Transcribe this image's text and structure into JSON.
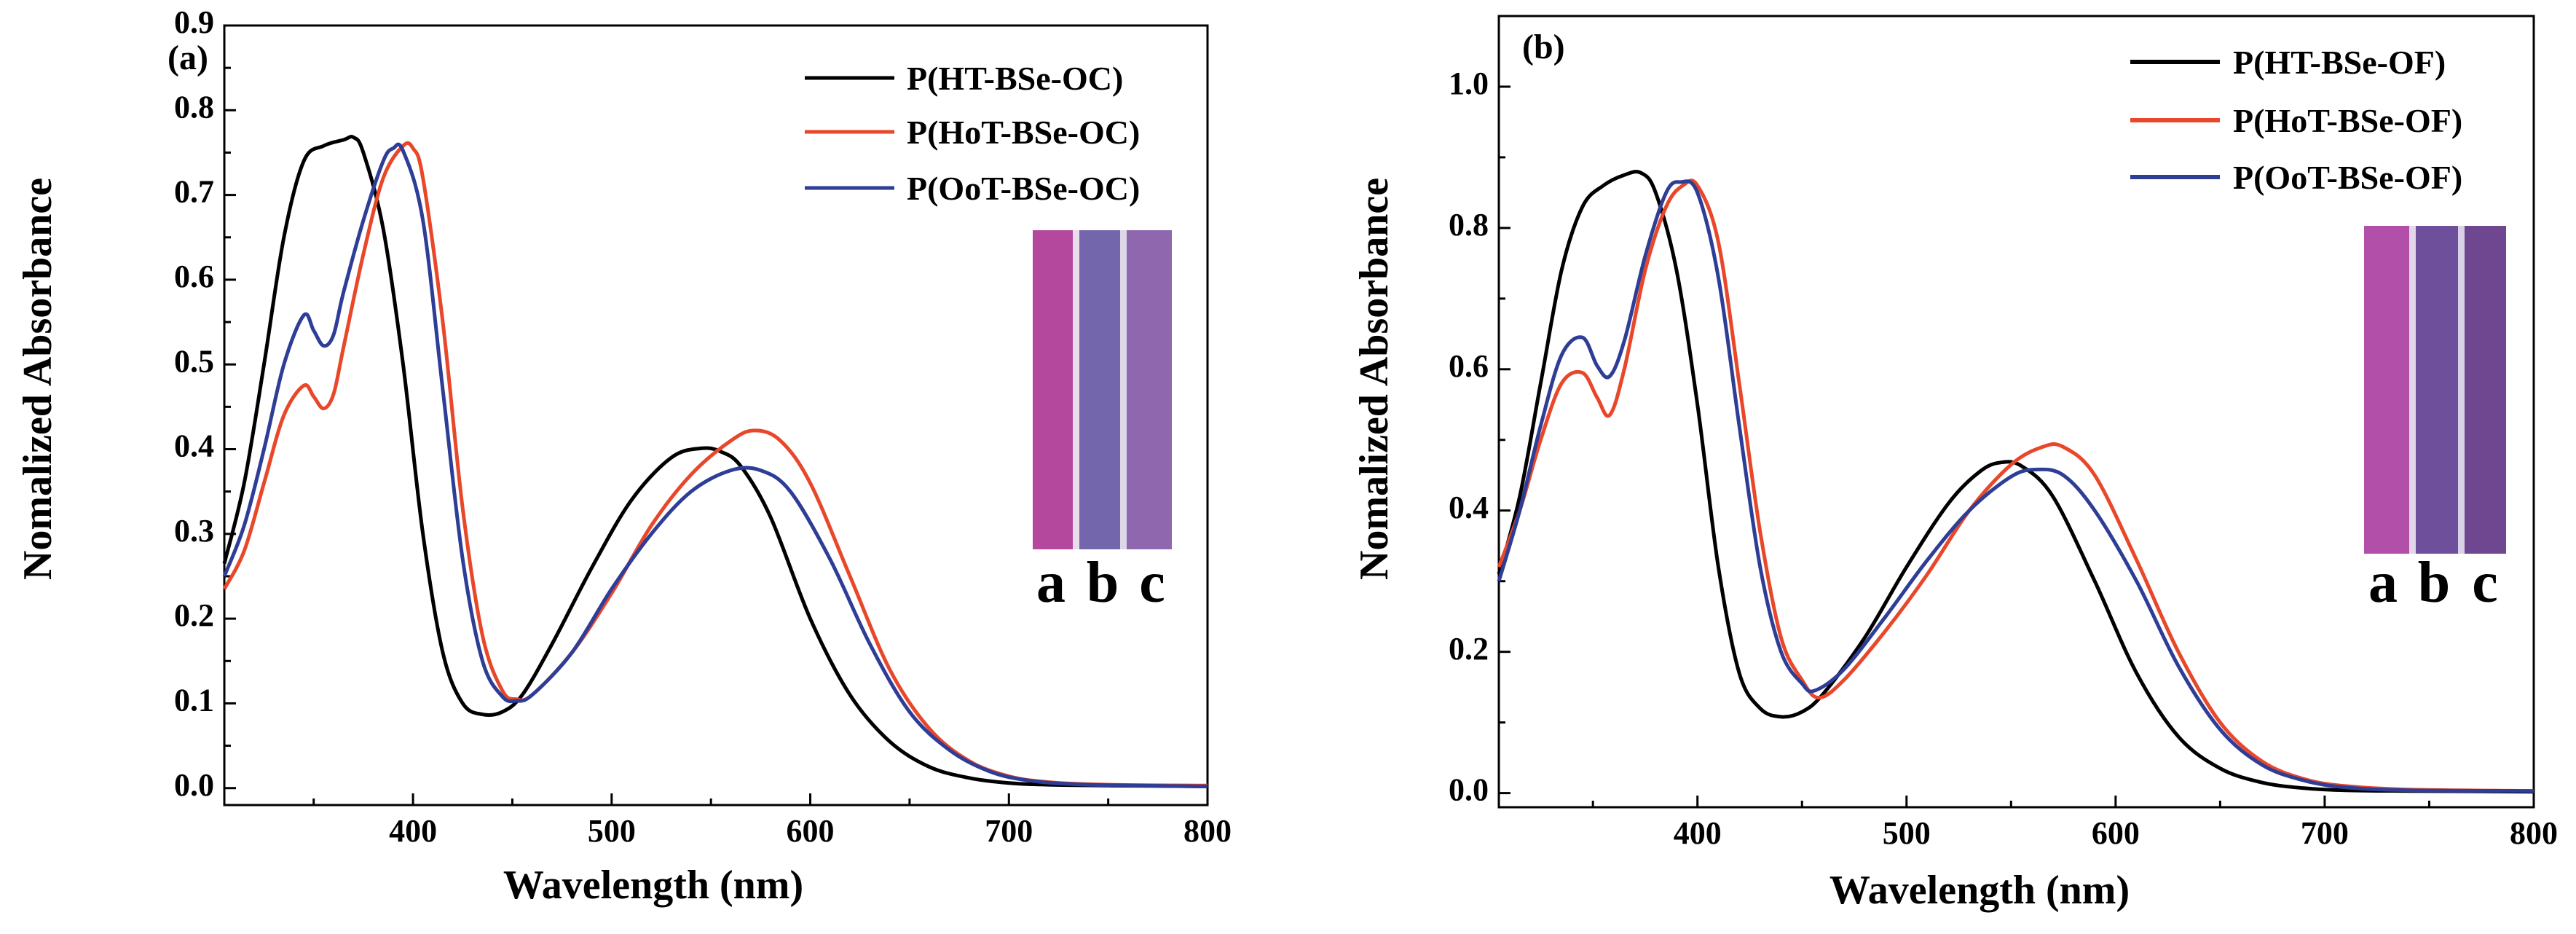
{
  "figure": {
    "panels": [
      {
        "id": "a",
        "inset": {
          "strip_colors": [
            "#b3489d",
            "#7466ad",
            "#8e67ae"
          ],
          "labels": [
            "a",
            "b",
            "c"
          ]
        }
      },
      {
        "id": "b",
        "inset": {
          "strip_colors": [
            "#b24fa8",
            "#6e4f9b",
            "#6f4690"
          ],
          "labels": [
            "a",
            "b",
            "c"
          ]
        }
      }
    ]
  },
  "chart_data": [
    {
      "type": "line",
      "panel_label": "(a)",
      "title": "",
      "xlabel": "Wavelength (nm)",
      "ylabel": "Nomalized Absorbance",
      "xlim": [
        305,
        800
      ],
      "ylim": [
        -0.02,
        0.9
      ],
      "xticks": [
        400,
        500,
        600,
        700,
        800
      ],
      "yticks": [
        0.0,
        0.1,
        0.2,
        0.3,
        0.4,
        0.5,
        0.6,
        0.7,
        0.8,
        0.9
      ],
      "ytick_labels": [
        "0.0",
        "0.1",
        "0.2",
        "0.3",
        "0.4",
        "0.5",
        "0.6",
        "0.7",
        "0.8",
        "0.9"
      ],
      "legend_position": "top-right",
      "series": [
        {
          "name": "P(HT-BSe-OC)",
          "color": "#000000",
          "x": [
            305,
            315,
            325,
            335,
            345,
            355,
            365,
            370,
            375,
            385,
            395,
            405,
            415,
            425,
            435,
            445,
            455,
            470,
            490,
            510,
            530,
            545,
            555,
            565,
            580,
            600,
            620,
            640,
            660,
            680,
            700,
            720,
            750,
            800
          ],
          "y": [
            0.265,
            0.36,
            0.5,
            0.65,
            0.74,
            0.758,
            0.765,
            0.768,
            0.75,
            0.66,
            0.5,
            0.3,
            0.16,
            0.1,
            0.087,
            0.09,
            0.11,
            0.17,
            0.26,
            0.34,
            0.39,
            0.401,
            0.397,
            0.38,
            0.32,
            0.2,
            0.11,
            0.055,
            0.025,
            0.012,
            0.006,
            0.004,
            0.003,
            0.002
          ]
        },
        {
          "name": "P(HoT-BSe-OC)",
          "color": "#e8472a",
          "x": [
            305,
            315,
            325,
            335,
            345,
            350,
            355,
            360,
            365,
            375,
            385,
            395,
            400,
            405,
            415,
            425,
            435,
            445,
            452,
            460,
            480,
            500,
            520,
            540,
            560,
            572,
            585,
            600,
            620,
            640,
            660,
            680,
            700,
            720,
            750,
            800
          ],
          "y": [
            0.235,
            0.28,
            0.36,
            0.44,
            0.475,
            0.462,
            0.448,
            0.465,
            0.52,
            0.63,
            0.72,
            0.758,
            0.755,
            0.72,
            0.55,
            0.33,
            0.18,
            0.115,
            0.105,
            0.11,
            0.16,
            0.23,
            0.31,
            0.37,
            0.41,
            0.422,
            0.41,
            0.36,
            0.25,
            0.14,
            0.07,
            0.032,
            0.014,
            0.007,
            0.004,
            0.003
          ]
        },
        {
          "name": "P(OoT-BSe-OC)",
          "color": "#2e3d96",
          "x": [
            305,
            315,
            325,
            335,
            345,
            350,
            355,
            360,
            365,
            375,
            385,
            390,
            395,
            405,
            415,
            425,
            435,
            445,
            452,
            460,
            480,
            500,
            520,
            540,
            560,
            575,
            590,
            610,
            630,
            650,
            670,
            690,
            710,
            740,
            800
          ],
          "y": [
            0.25,
            0.31,
            0.4,
            0.5,
            0.558,
            0.54,
            0.522,
            0.535,
            0.585,
            0.67,
            0.74,
            0.755,
            0.752,
            0.67,
            0.47,
            0.27,
            0.15,
            0.108,
            0.103,
            0.11,
            0.16,
            0.235,
            0.3,
            0.35,
            0.375,
            0.375,
            0.35,
            0.27,
            0.17,
            0.09,
            0.045,
            0.02,
            0.009,
            0.004,
            0.002
          ]
        }
      ]
    },
    {
      "type": "line",
      "panel_label": "(b)",
      "title": "",
      "xlabel": "Wavelength (nm)",
      "ylabel": "Nomalized Absorbance",
      "xlim": [
        305,
        800
      ],
      "ylim": [
        -0.02,
        1.1
      ],
      "xticks": [
        400,
        500,
        600,
        700,
        800
      ],
      "yticks": [
        0.0,
        0.2,
        0.4,
        0.6,
        0.8,
        1.0
      ],
      "ytick_labels": [
        "0.0",
        "0.2",
        "0.4",
        "0.6",
        "0.8",
        "1.0"
      ],
      "legend_position": "top-right",
      "series": [
        {
          "name": "P(HT-BSe-OF)",
          "color": "#000000",
          "x": [
            305,
            315,
            325,
            335,
            345,
            355,
            365,
            373,
            380,
            390,
            400,
            410,
            420,
            430,
            440,
            450,
            460,
            480,
            500,
            520,
            535,
            545,
            555,
            570,
            590,
            610,
            630,
            650,
            670,
            690,
            710,
            740,
            800
          ],
          "y": [
            0.31,
            0.42,
            0.58,
            0.74,
            0.83,
            0.86,
            0.875,
            0.878,
            0.85,
            0.74,
            0.55,
            0.32,
            0.17,
            0.12,
            0.108,
            0.115,
            0.14,
            0.22,
            0.32,
            0.41,
            0.455,
            0.468,
            0.463,
            0.42,
            0.3,
            0.17,
            0.08,
            0.035,
            0.015,
            0.007,
            0.004,
            0.003,
            0.002
          ]
        },
        {
          "name": "P(HoT-BSe-OF)",
          "color": "#e8472a",
          "x": [
            305,
            315,
            325,
            335,
            345,
            352,
            358,
            365,
            375,
            385,
            393,
            400,
            410,
            420,
            430,
            440,
            450,
            458,
            470,
            490,
            510,
            530,
            550,
            565,
            575,
            590,
            610,
            630,
            650,
            670,
            690,
            710,
            740,
            800
          ],
          "y": [
            0.32,
            0.4,
            0.5,
            0.58,
            0.595,
            0.56,
            0.535,
            0.6,
            0.74,
            0.83,
            0.86,
            0.86,
            0.78,
            0.58,
            0.37,
            0.22,
            0.16,
            0.135,
            0.16,
            0.23,
            0.31,
            0.4,
            0.465,
            0.49,
            0.49,
            0.45,
            0.33,
            0.2,
            0.1,
            0.045,
            0.02,
            0.01,
            0.005,
            0.003
          ]
        },
        {
          "name": "P(OoT-BSe-OF)",
          "color": "#2e3d96",
          "x": [
            305,
            315,
            325,
            335,
            345,
            352,
            358,
            365,
            375,
            385,
            392,
            400,
            410,
            420,
            430,
            440,
            450,
            456,
            470,
            490,
            510,
            530,
            550,
            562,
            575,
            590,
            610,
            630,
            650,
            670,
            690,
            710,
            740,
            800
          ],
          "y": [
            0.3,
            0.4,
            0.52,
            0.62,
            0.645,
            0.605,
            0.59,
            0.64,
            0.76,
            0.85,
            0.865,
            0.85,
            0.73,
            0.52,
            0.32,
            0.2,
            0.155,
            0.145,
            0.175,
            0.25,
            0.33,
            0.4,
            0.448,
            0.458,
            0.45,
            0.4,
            0.3,
            0.18,
            0.09,
            0.04,
            0.018,
            0.008,
            0.004,
            0.003
          ]
        }
      ]
    }
  ]
}
